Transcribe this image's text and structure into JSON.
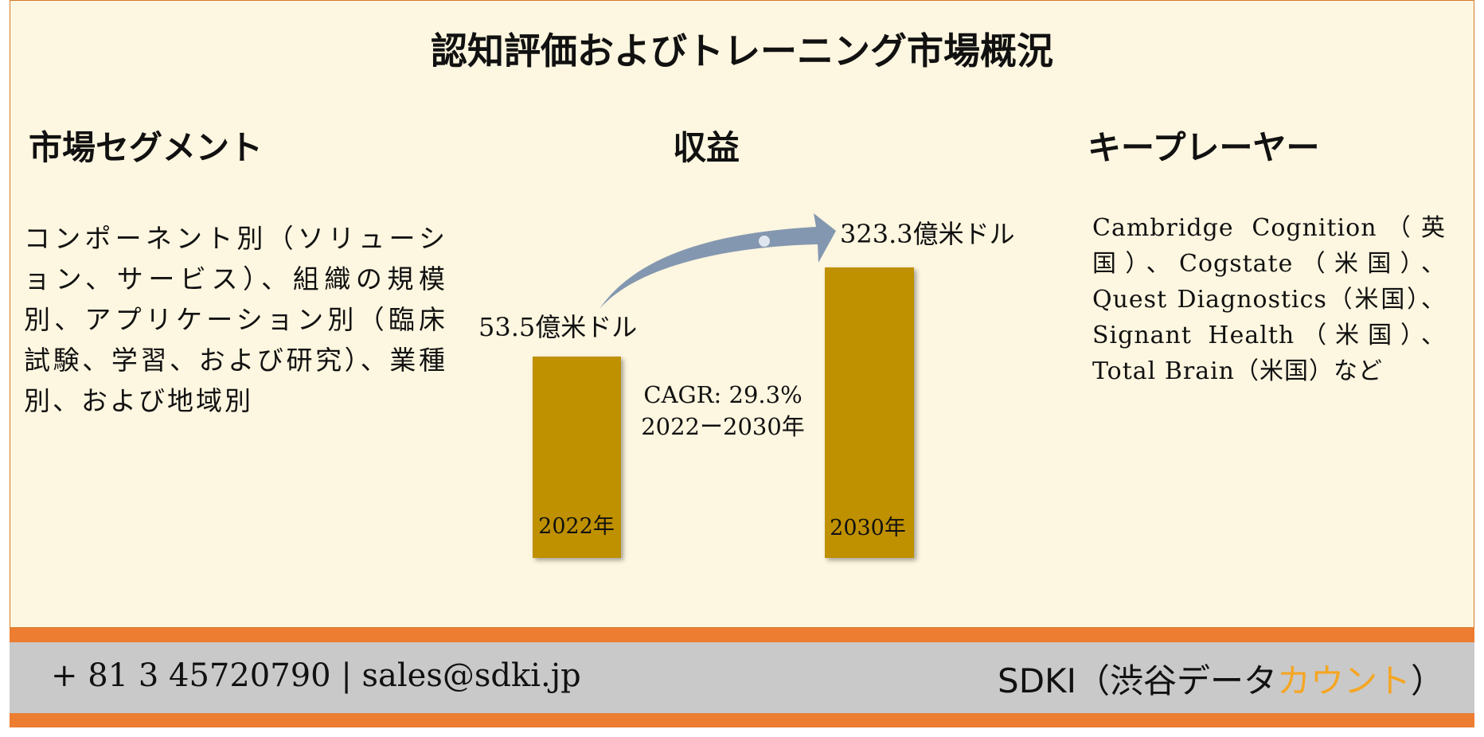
{
  "title": "認知評価およびトレーニング市場概況",
  "segments": {
    "heading": "市場セグメント",
    "text": "コンポーネント別（ソリューション、サービス）、組織の規模別、アプリケーション別（臨床試験、学習、および研究）、業種別、および地域別"
  },
  "revenue": {
    "heading": "収益",
    "start": {
      "year": "2022年",
      "value_label": "53.5億米ドル"
    },
    "end": {
      "year": "2030年",
      "value_label": "323.3億米ドル"
    },
    "cagr": "CAGR: 29.3%",
    "period": "2022ー2030年"
  },
  "players": {
    "heading": "キープレーヤー",
    "text": "Cambridge Cognition（英国）、Cogstate（米国）、Quest Diagnostics（米国）、Signant Health（米国）、Total Brain（米国）など"
  },
  "footer": {
    "contact": "+ 81 3 45720790 | sales@sdki.jp",
    "brand": "SDKI（渋谷データ",
    "brand_highlight": "カウント",
    "brand_close": "）"
  }
}
